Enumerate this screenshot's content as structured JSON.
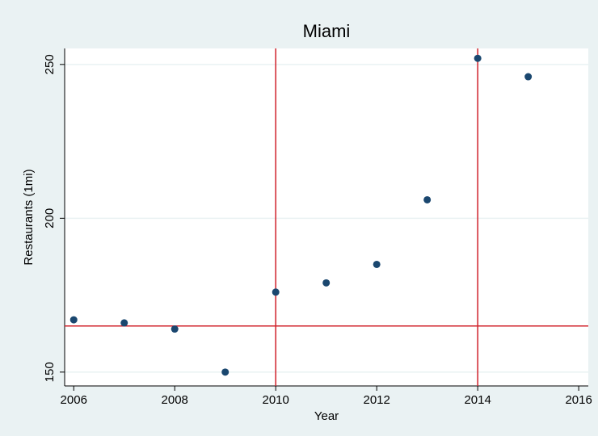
{
  "chart_data": {
    "type": "scatter",
    "title": "Miami",
    "x_label": "Year",
    "y_label": "Restaurants (1mi)",
    "x": [
      2006,
      2007,
      2008,
      2009,
      2010,
      2011,
      2012,
      2013,
      2014,
      2015
    ],
    "values": [
      167,
      166,
      164,
      150,
      176,
      179,
      185,
      206,
      252,
      246
    ],
    "color": "#1a476f",
    "xlim": [
      2005.82,
      2016.19
    ],
    "xticks": [
      2006,
      2008,
      2010,
      2012,
      2014,
      2016
    ],
    "ylim": [
      145.5,
      255.2
    ],
    "yticks": [
      150,
      200,
      250
    ],
    "grid": true,
    "xlines": [
      2010,
      2014
    ],
    "ylines": [
      165
    ],
    "line_color": "#d0202a"
  }
}
